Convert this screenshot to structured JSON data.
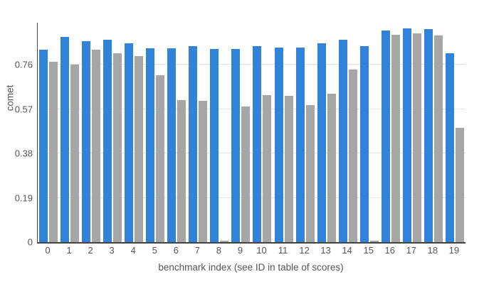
{
  "chart_data": {
    "type": "bar",
    "title": "",
    "xlabel": "benchmark index (see ID in table of scores)",
    "ylabel": "comet",
    "categories": [
      "0",
      "1",
      "2",
      "3",
      "4",
      "5",
      "6",
      "7",
      "8",
      "9",
      "10",
      "11",
      "12",
      "13",
      "14",
      "15",
      "16",
      "17",
      "18",
      "19"
    ],
    "series": [
      {
        "name": "series-blue",
        "color": "#3183d9",
        "values": [
          0.824,
          0.878,
          0.861,
          0.868,
          0.853,
          0.832,
          0.83,
          0.84,
          0.827,
          0.829,
          0.84,
          0.833,
          0.834,
          0.852,
          0.868,
          0.84,
          0.908,
          0.916,
          0.913,
          0.81
        ]
      },
      {
        "name": "series-gray",
        "color": "#a6a6a6",
        "values": [
          0.772,
          0.761,
          0.824,
          0.809,
          0.797,
          0.716,
          0.607,
          0.604,
          0.005,
          0.581,
          0.63,
          0.627,
          0.587,
          0.637,
          0.74,
          0.006,
          0.888,
          0.894,
          0.885,
          0.49
        ]
      }
    ],
    "yticks": [
      0,
      0.19,
      0.38,
      0.57,
      0.76
    ],
    "ytick_labels": [
      "0",
      "0.19",
      "0.38",
      "0.57",
      "0.76"
    ],
    "ylim": [
      0,
      0.94
    ],
    "grid": true,
    "legend": "none"
  },
  "colors": {
    "axis_line": "#444444",
    "gridline": "#e3e3e3",
    "tick_text": "#555555",
    "background": "#ffffff"
  }
}
